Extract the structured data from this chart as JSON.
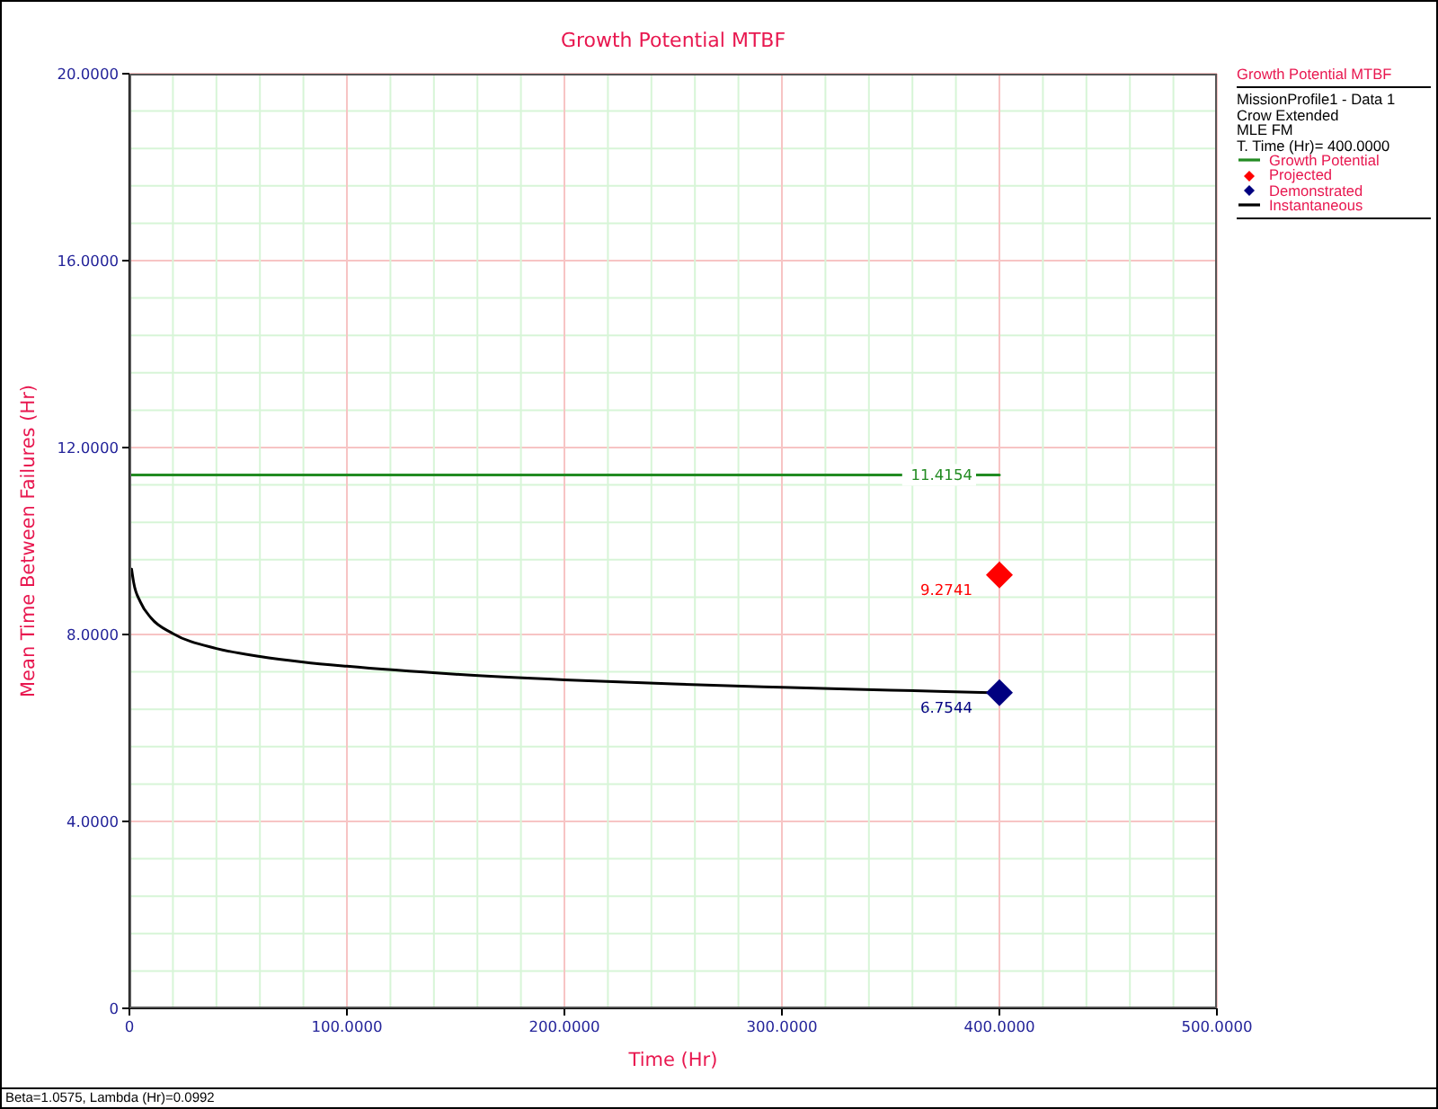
{
  "chart_data": {
    "type": "line",
    "title": "Growth Potential MTBF",
    "xlabel": "Time (Hr)",
    "ylabel": "Mean Time Between Failures (Hr)",
    "legend_title": "Growth Potential MTBF",
    "legend": "right",
    "grid": true,
    "xlim": [
      0,
      500
    ],
    "xticks": [
      0,
      {
        "value": 20,
        "label": null
      },
      {
        "value": 40,
        "label": null
      },
      {
        "value": 60,
        "label": null
      },
      {
        "value": 80,
        "label": null
      },
      {
        "value": 100,
        "label": "100.0000"
      },
      {
        "value": 120,
        "label": null
      },
      {
        "value": 140,
        "label": null
      },
      {
        "value": 160,
        "label": null
      },
      {
        "value": 180,
        "label": null
      },
      {
        "value": 200,
        "label": "200.0000"
      },
      {
        "value": 220,
        "label": null
      },
      {
        "value": 240,
        "label": null
      },
      {
        "value": 260,
        "label": null
      },
      {
        "value": 280,
        "label": null
      },
      {
        "value": 300,
        "label": "300.0000"
      },
      {
        "value": 320,
        "label": null
      },
      {
        "value": 340,
        "label": null
      },
      {
        "value": 360,
        "label": null
      },
      {
        "value": 380,
        "label": null
      },
      {
        "value": 400,
        "label": "400.0000"
      },
      {
        "value": 420,
        "label": null
      },
      {
        "value": 440,
        "label": null
      },
      {
        "value": 460,
        "label": null
      },
      {
        "value": 480,
        "label": null
      },
      {
        "value": 500,
        "label": "500.0000"
      }
    ],
    "ylim": [
      0,
      20
    ],
    "yticks": [
      0,
      {
        "value": 0.8,
        "label": null
      },
      {
        "value": 1.6,
        "label": null
      },
      {
        "value": 2.4,
        "label": null
      },
      {
        "value": 3.2,
        "label": null
      },
      {
        "value": 4,
        "label": "4.0000"
      },
      {
        "value": 4.8,
        "label": null
      },
      {
        "value": 5.6,
        "label": null
      },
      {
        "value": 6.4,
        "label": null
      },
      {
        "value": 7.2,
        "label": null
      },
      {
        "value": 8,
        "label": "8.0000"
      },
      {
        "value": 8.8,
        "label": null
      },
      {
        "value": 9.6,
        "label": null
      },
      {
        "value": 10.4,
        "label": null
      },
      {
        "value": 11.2,
        "label": null
      },
      {
        "value": 12,
        "label": "12.0000"
      },
      {
        "value": 12.8,
        "label": null
      },
      {
        "value": 13.6,
        "label": null
      },
      {
        "value": 14.4,
        "label": null
      },
      {
        "value": 15.2,
        "label": null
      },
      {
        "value": 16,
        "label": "16.0000"
      },
      {
        "value": 16.8,
        "label": null
      },
      {
        "value": 17.6,
        "label": null
      },
      {
        "value": 18.4,
        "label": null
      },
      {
        "value": 19.2,
        "label": null
      },
      {
        "value": 20,
        "label": "20.0000"
      }
    ],
    "annotations": [
      "MissionProfile1 - Data 1",
      "Crow Extended",
      "MLE FM",
      "T. Time (Hr)= 400.0000",
      "Beta=1.0575, Lambda (Hr)=0.0992"
    ],
    "series": [
      {
        "name": "Growth Potential",
        "type": "line",
        "color": "#228b22",
        "x": [
          0,
          400
        ],
        "values": [
          11.4154,
          11.4154
        ],
        "value_labels": [
          null,
          "11.4154"
        ]
      },
      {
        "name": "Projected",
        "type": "scatter",
        "color": "#ff0000",
        "marker": "diamond",
        "x": [
          400
        ],
        "values": [
          9.2741
        ],
        "value_labels": [
          "9.2741"
        ]
      },
      {
        "name": "Demonstrated",
        "type": "scatter",
        "color": "#000080",
        "marker": "diamond",
        "x": [
          400
        ],
        "values": [
          6.7544
        ],
        "value_labels": [
          "6.7544"
        ]
      },
      {
        "name": "Instantaneous",
        "type": "line",
        "color": "#000000",
        "x": [
          1,
          2,
          5,
          10,
          20,
          40,
          60,
          80,
          100,
          150,
          200,
          250,
          300,
          350,
          400
        ],
        "values": [
          9.4,
          9.1,
          8.7,
          8.35,
          8.02,
          7.7,
          7.53,
          7.41,
          7.32,
          7.15,
          7.03,
          6.94,
          6.87,
          6.81,
          6.75
        ]
      }
    ]
  }
}
